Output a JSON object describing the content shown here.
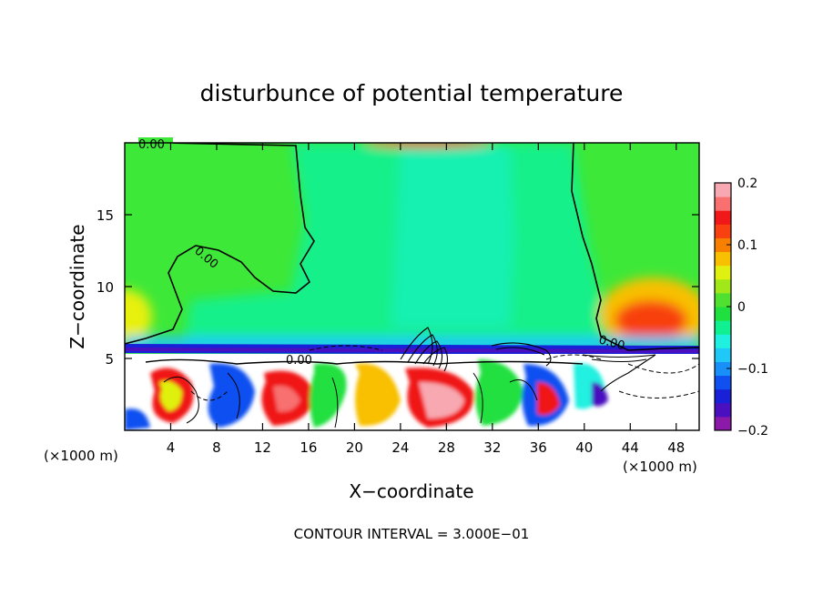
{
  "chart_data": {
    "type": "heatmap",
    "title": "disturbunce of potential temperature",
    "xlabel": "X−coordinate",
    "ylabel": "Z−coordinate",
    "x_unit_left": "(×1000 m)",
    "x_unit_right": "(×1000 m)",
    "xlim": [
      0,
      50
    ],
    "ylim": [
      0,
      20
    ],
    "x_ticks": [
      4,
      8,
      12,
      16,
      20,
      24,
      28,
      32,
      36,
      40,
      44,
      48
    ],
    "y_ticks": [
      5,
      10,
      15
    ],
    "grid": false,
    "colorbar": {
      "min": -0.2,
      "max": 0.2,
      "ticks": [
        "0.2",
        "0.1",
        "0",
        "−0.1",
        "−0.2"
      ],
      "tick_values": [
        0.2,
        0.1,
        0,
        -0.1,
        -0.2
      ],
      "colors": [
        "#8b1aa8",
        "#4a10c0",
        "#1820d8",
        "#1050f0",
        "#1890f8",
        "#20c8f8",
        "#20f0e0",
        "#10f090",
        "#20e040",
        "#50e030",
        "#a0e818",
        "#e0f010",
        "#f8c000",
        "#f88000",
        "#f84010",
        "#f01818",
        "#f87070",
        "#f8a8b0"
      ]
    },
    "contour_labels": [
      "0.00",
      "0.00",
      "0.00",
      "0.00"
    ],
    "footer": "CONTOUR INTERVAL = 3.000E−01"
  }
}
